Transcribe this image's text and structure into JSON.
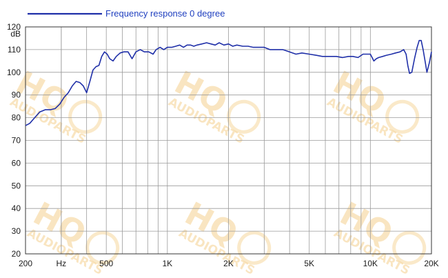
{
  "chart_data": {
    "type": "line",
    "title": "",
    "ylabel": "dB",
    "xlabel": "Hz",
    "xscale": "log",
    "xlim": [
      200,
      20000
    ],
    "ylim": [
      20,
      120
    ],
    "grid": true,
    "legend_position": "top-left",
    "colors": {
      "series": "#1f2fa8",
      "grid": "#9a9a9a",
      "axis": "#333333",
      "watermark": "#f3c777"
    },
    "x_tick_labels": [
      {
        "value": 200,
        "label": "200"
      },
      {
        "value": 300,
        "label": "Hz"
      },
      {
        "value": 500,
        "label": "500"
      },
      {
        "value": 1000,
        "label": "1K"
      },
      {
        "value": 2000,
        "label": "2K"
      },
      {
        "value": 5000,
        "label": "5K"
      },
      {
        "value": 10000,
        "label": "10K"
      },
      {
        "value": 20000,
        "label": "20K"
      }
    ],
    "x_minor_grid": [
      300,
      400,
      600,
      700,
      800,
      900,
      3000,
      4000,
      6000,
      7000,
      8000,
      9000
    ],
    "y_ticks": [
      20,
      30,
      40,
      50,
      60,
      70,
      80,
      90,
      100,
      110,
      120
    ],
    "series": [
      {
        "name": "Frequency response 0 degree",
        "x": [
          200,
          210,
          222,
          235,
          250,
          265,
          280,
          295,
          310,
          325,
          340,
          355,
          370,
          385,
          400,
          415,
          430,
          445,
          460,
          475,
          490,
          505,
          520,
          540,
          560,
          585,
          610,
          640,
          670,
          700,
          735,
          770,
          810,
          850,
          880,
          920,
          960,
          1000,
          1050,
          1100,
          1150,
          1200,
          1250,
          1300,
          1350,
          1400,
          1480,
          1560,
          1640,
          1720,
          1800,
          1900,
          2000,
          2100,
          2200,
          2350,
          2500,
          2650,
          2800,
          3000,
          3200,
          3400,
          3700,
          4000,
          4300,
          4600,
          5000,
          5400,
          5800,
          6300,
          6800,
          7300,
          7800,
          8200,
          8700,
          9200,
          9600,
          10000,
          10200,
          10400,
          10700,
          11000,
          11500,
          12000,
          12700,
          13300,
          14000,
          14600,
          15000,
          15300,
          15600,
          16000,
          16500,
          17000,
          17400,
          17800,
          18200,
          18600,
          19000,
          19500,
          20000
        ],
        "y": [
          76.5,
          77.5,
          80,
          82.5,
          83.5,
          83.5,
          84,
          86,
          89,
          91,
          94,
          96,
          95.5,
          94,
          91,
          96,
          101,
          102.5,
          103,
          107,
          109,
          108,
          106,
          105,
          107,
          108.5,
          109,
          109,
          106,
          109,
          110,
          109,
          109,
          108,
          110,
          111,
          110,
          111,
          111,
          111.5,
          112,
          111,
          112,
          112,
          111.5,
          112,
          112.5,
          113,
          112.5,
          112,
          113,
          112,
          112.5,
          111.5,
          112,
          111.5,
          111.5,
          111,
          111,
          111,
          110,
          110,
          110,
          109,
          108,
          108.5,
          108,
          107.5,
          107,
          107,
          107,
          106.5,
          107,
          107,
          106.5,
          108,
          108,
          108,
          106.5,
          105,
          106,
          106.5,
          107,
          107.5,
          108,
          108.5,
          109,
          110,
          108,
          103,
          99.5,
          100,
          106,
          111,
          114,
          114,
          110,
          105,
          100,
          104,
          109
        ]
      }
    ]
  },
  "watermark": {
    "brand": "HQ",
    "subtext": "AUDIOPARTS"
  }
}
